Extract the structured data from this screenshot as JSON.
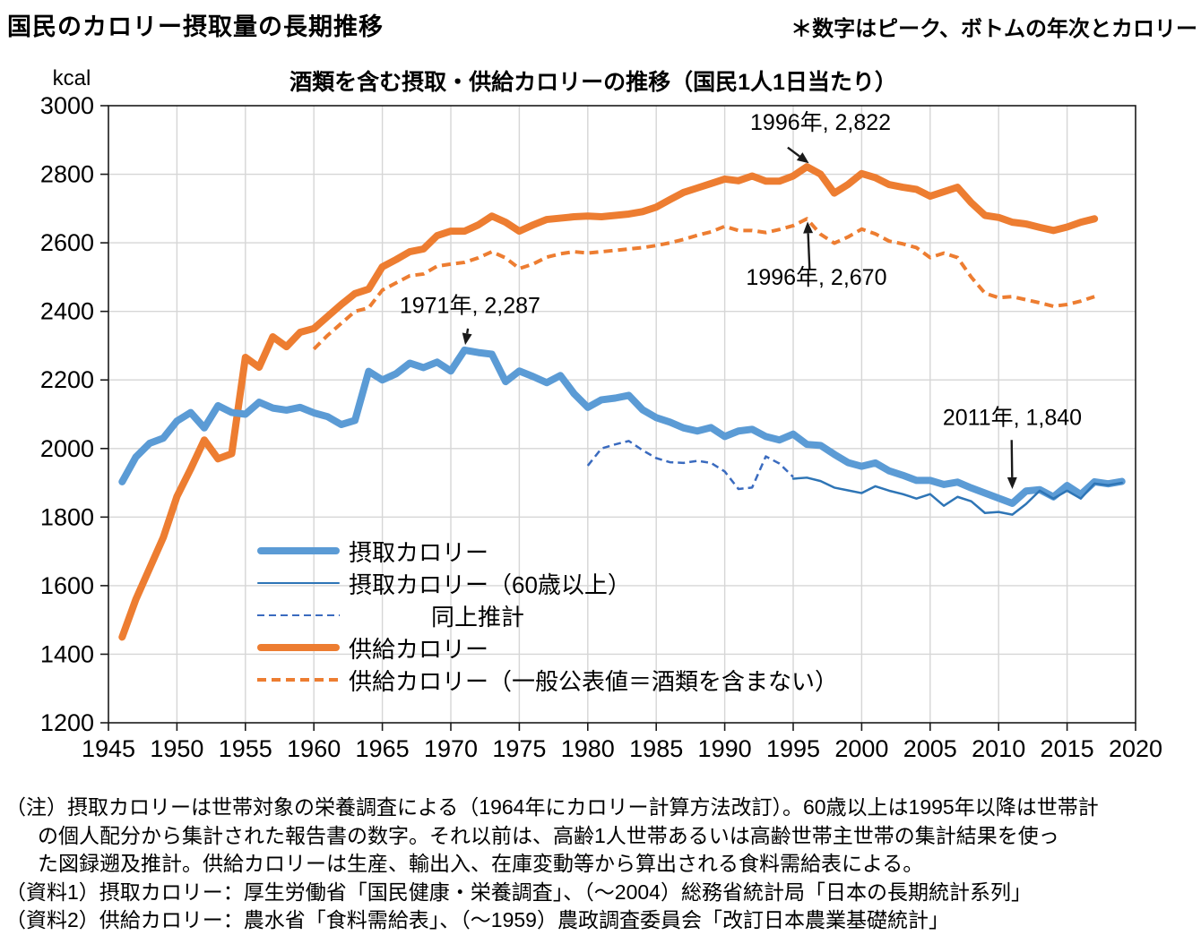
{
  "header": {
    "title": "国民のカロリー摂取量の長期推移",
    "note": "＊数字はピーク、ボトムの年次とカロリー"
  },
  "chart_data": {
    "type": "line",
    "title": "酒類を含む摂取・供給カロリーの推移（国民1人1日当たり）",
    "unit_label": "kcal",
    "x_axis": {
      "min": 1945,
      "max": 2020,
      "step": 5
    },
    "y_axis": {
      "min": 1200,
      "max": 3000,
      "step": 200
    },
    "grid": true,
    "legend_position": "inside-bottom-left",
    "series": [
      {
        "name": "摂取カロリー",
        "color": "#5B9BD5",
        "width": 8,
        "dash": null,
        "start_year": 1946,
        "values": [
          1903,
          1975,
          2015,
          2030,
          2080,
          2105,
          2060,
          2125,
          2105,
          2100,
          2135,
          2118,
          2112,
          2120,
          2104,
          2093,
          2070,
          2082,
          2225,
          2200,
          2218,
          2249,
          2236,
          2252,
          2226,
          2287,
          2280,
          2275,
          2195,
          2226,
          2210,
          2192,
          2213,
          2160,
          2120,
          2142,
          2147,
          2155,
          2113,
          2090,
          2077,
          2060,
          2051,
          2061,
          2035,
          2051,
          2056,
          2035,
          2025,
          2042,
          2012,
          2009,
          1983,
          1959,
          1948,
          1958,
          1935,
          1922,
          1907,
          1907,
          1895,
          1902,
          1885,
          1870,
          1855,
          1840,
          1876,
          1880,
          1859,
          1892,
          1866,
          1903,
          1897,
          1904
        ]
      },
      {
        "name": "摂取カロリー（60歳以上）",
        "color": "#2E75B6",
        "width": 2.5,
        "dash": null,
        "start_year": 1995,
        "values": [
          1912,
          1915,
          1905,
          1886,
          1878,
          1870,
          1890,
          1877,
          1867,
          1854,
          1867,
          1833,
          1859,
          1846,
          1812,
          1815,
          1807,
          1838,
          1877,
          1854,
          1877,
          1854,
          1898,
          1893,
          1900
        ]
      },
      {
        "name": "同上推計",
        "color": "#3A6BBF",
        "width": 2.5,
        "dash": "8,5",
        "start_year": 1980,
        "values": [
          1950,
          2000,
          2012,
          2022,
          1995,
          1972,
          1960,
          1958,
          1964,
          1958,
          1933,
          1882,
          1886,
          1977,
          1956,
          1917
        ]
      },
      {
        "name": "供給カロリー",
        "color": "#ED7D31",
        "width": 8,
        "dash": null,
        "start_year": 1946,
        "values": [
          1450,
          1560,
          1650,
          1740,
          1860,
          1940,
          2025,
          1970,
          1985,
          2266,
          2237,
          2326,
          2297,
          2339,
          2350,
          2385,
          2420,
          2452,
          2465,
          2530,
          2551,
          2574,
          2582,
          2621,
          2634,
          2634,
          2652,
          2678,
          2660,
          2634,
          2652,
          2668,
          2672,
          2676,
          2678,
          2676,
          2680,
          2684,
          2691,
          2704,
          2726,
          2747,
          2760,
          2773,
          2786,
          2781,
          2795,
          2780,
          2780,
          2795,
          2822,
          2800,
          2745,
          2770,
          2802,
          2790,
          2770,
          2762,
          2756,
          2736,
          2749,
          2762,
          2717,
          2680,
          2674,
          2660,
          2655,
          2645,
          2636,
          2646,
          2660,
          2670
        ]
      },
      {
        "name": "供給カロリー（一般公表値＝酒類を含まない）",
        "color": "#ED7D31",
        "width": 4,
        "dash": "10,6",
        "start_year": 1960,
        "values": [
          2290,
          2330,
          2365,
          2400,
          2410,
          2462,
          2483,
          2504,
          2509,
          2532,
          2538,
          2543,
          2556,
          2574,
          2556,
          2525,
          2538,
          2558,
          2568,
          2574,
          2570,
          2574,
          2578,
          2582,
          2586,
          2592,
          2600,
          2610,
          2622,
          2632,
          2648,
          2636,
          2636,
          2630,
          2639,
          2650,
          2670,
          2625,
          2599,
          2617,
          2640,
          2626,
          2605,
          2597,
          2586,
          2557,
          2570,
          2557,
          2500,
          2453,
          2440,
          2443,
          2434,
          2425,
          2415,
          2420,
          2430,
          2443
        ]
      }
    ],
    "annotations": [
      {
        "text": "1971年, 2,287",
        "label_year": 1971.4,
        "label_kcal": 2395,
        "arrow": [
          1971.25,
          2350,
          1971.05,
          2302
        ]
      },
      {
        "text": "1996年, 2,822",
        "label_year": 1997.0,
        "label_kcal": 2930,
        "arrow": [
          1994.6,
          2878,
          1996.15,
          2832
        ]
      },
      {
        "text": "1996年, 2,670",
        "label_year": 1996.7,
        "label_kcal": 2478,
        "arrow": [
          1996.2,
          2522,
          1996.05,
          2662
        ]
      },
      {
        "text": "2011年, 1,840",
        "label_year": 2011.0,
        "label_kcal": 2068,
        "arrow": [
          2010.95,
          2025,
          2011.0,
          1882
        ]
      }
    ]
  },
  "notes": {
    "line1": "（注）摂取カロリーは世帯対象の栄養調査による（1964年にカロリー計算方法改訂）。60歳以上は1995年以降は世帯計",
    "line2": "の個人配分から集計された報告書の数字。それ以前は、高齢1人世帯あるいは高齢世帯主世帯の集計結果を使っ",
    "line3": "た図録遡及推計。供給カロリーは生産、輸出入、在庫変動等から算出される食料需給表による。",
    "source1": "（資料1）摂取カロリー：厚生労働省「国民健康・栄養調査」、（～2004）総務省統計局「日本の長期統計系列」",
    "source2": "（資料2）供給カロリー：農水省「食料需給表」、（～1959）農政調査委員会「改訂日本農業基礎統計」"
  }
}
